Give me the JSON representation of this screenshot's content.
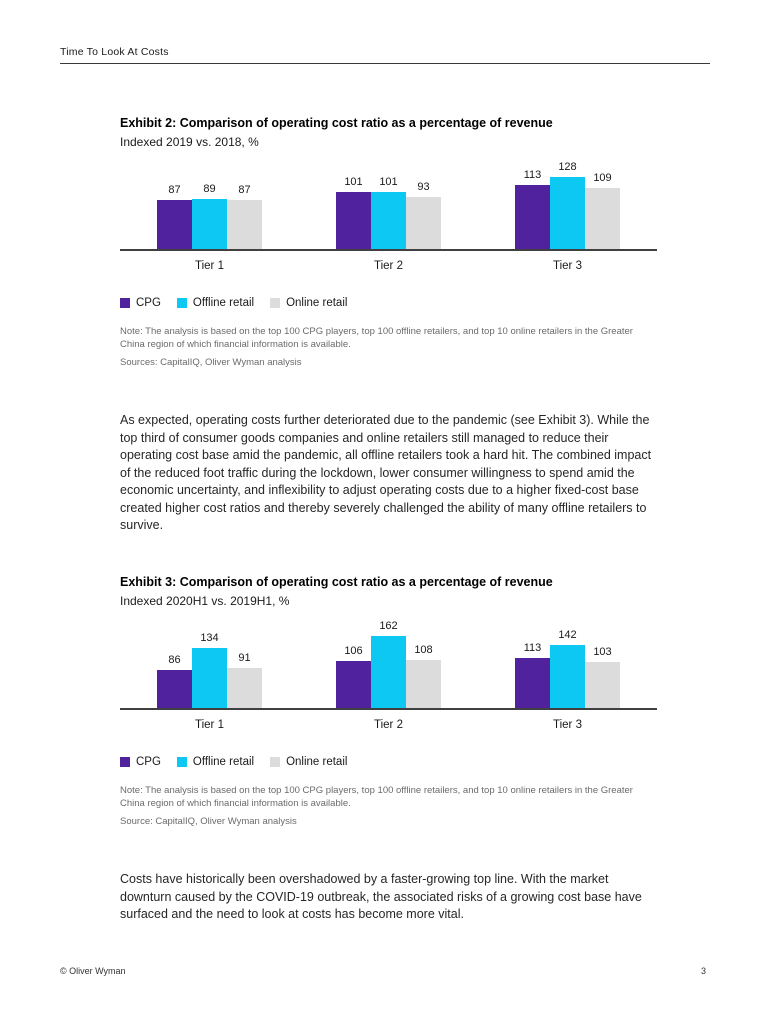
{
  "page": {
    "header": "Time To Look At Costs",
    "footer_left": "© Oliver Wyman",
    "footer_page": "3"
  },
  "colors": {
    "cpg_purple": "#50229E",
    "offline_cyan": "#0CC8F2",
    "online_gray": "#DCDCDC",
    "axis": "#404040"
  },
  "exhibit2": {
    "title": "Exhibit 2: Comparison of operating cost ratio as a percentage of revenue",
    "subtitle": "Indexed 2019 vs. 2018, %",
    "note": "Note: The analysis is based on the top 100 CPG players, top 100 offline retailers, and top 10 online retailers in the Greater China region of which financial information is available.",
    "source": "Sources: CapitalIQ, Oliver Wyman analysis"
  },
  "exhibit3": {
    "title": "Exhibit 3: Comparison of operating cost ratio as a percentage of revenue",
    "subtitle": "Indexed 2020H1 vs. 2019H1, %",
    "note": "Note: The analysis is based on the top 100 CPG players, top 100 offline retailers, and top 10 online retailers in the Greater China region of which financial information is available.",
    "source": "Source: CapitalIQ, Oliver Wyman analysis"
  },
  "paragraph1": "As expected, operating costs further deteriorated due to the pandemic (see Exhibit 3). While the top third of consumer goods companies and online retailers still managed to reduce their operating cost base amid the pandemic, all offline retailers took a hard hit. The combined impact of the reduced foot traffic during the lockdown, lower consumer willingness to spend amid the economic uncertainty, and inflexibility to adjust operating costs due to a higher fixed-cost base created higher cost ratios and thereby severely challenged the ability of many offline retailers to survive.",
  "paragraph2": "Costs have historically been overshadowed by a faster-growing top line. With the market downturn caused by the COVID-19 outbreak, the associated risks of a growing cost base have surfaced and the need to look at costs has become more vital.",
  "chart_data": [
    {
      "type": "bar",
      "title": "Exhibit 2: Comparison of operating cost ratio as a percentage of revenue",
      "subtitle": "Indexed 2019 vs. 2018, %",
      "categories": [
        "Tier 1",
        "Tier 2",
        "Tier 3"
      ],
      "series": [
        {
          "name": "CPG",
          "color": "#50229E",
          "values": [
            87,
            101,
            113
          ]
        },
        {
          "name": "Offline retail",
          "color": "#0CC8F2",
          "values": [
            89,
            101,
            128
          ]
        },
        {
          "name": "Online retail",
          "color": "#DCDCDC",
          "values": [
            87,
            93,
            109
          ]
        }
      ],
      "ylim": [
        0,
        128
      ],
      "grid": false,
      "legend_position": "bottom",
      "data_labels": true
    },
    {
      "type": "bar",
      "title": "Exhibit 3: Comparison of operating cost ratio as a percentage of revenue",
      "subtitle": "Indexed 2020H1 vs. 2019H1, %",
      "categories": [
        "Tier 1",
        "Tier 2",
        "Tier 3"
      ],
      "series": [
        {
          "name": "CPG",
          "color": "#50229E",
          "values": [
            86,
            106,
            113
          ]
        },
        {
          "name": "Offline retail",
          "color": "#0CC8F2",
          "values": [
            134,
            162,
            142
          ]
        },
        {
          "name": "Online retail",
          "color": "#DCDCDC",
          "values": [
            91,
            108,
            103
          ]
        }
      ],
      "ylim": [
        0,
        162
      ],
      "grid": false,
      "legend_position": "bottom",
      "data_labels": true
    }
  ]
}
